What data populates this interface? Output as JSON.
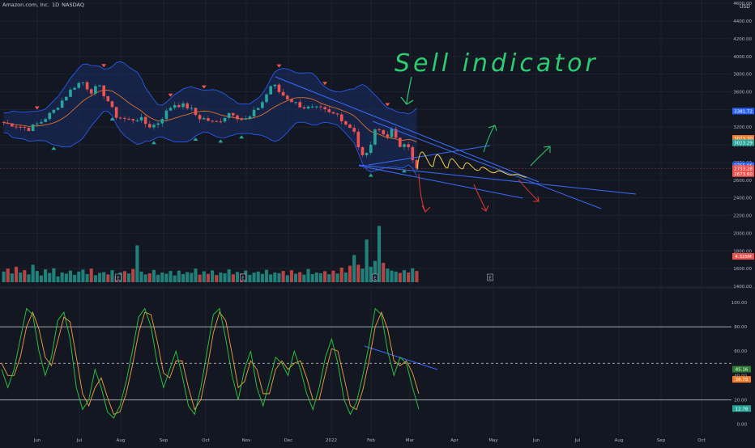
{
  "header": {
    "symbol": "Amazon.com, Inc.",
    "interval": "1D",
    "exchange": "NASDAQ",
    "currency": "USD"
  },
  "colors": {
    "background": "#131722",
    "grid": "#1e2230",
    "up": "#26a69a",
    "down": "#ef5350",
    "band": "#2962ff",
    "band_fill": "#1a2a55",
    "ma": "#f57c2a",
    "stoch_k": "#2ecc40",
    "stoch_d": "#f0a040",
    "drawing_green": "#2ecc71",
    "drawing_red": "#e53935",
    "drawing_yellow": "#f3d24a",
    "trendline": "#3a6cff"
  },
  "annotations": {
    "handwritten": "Sell indicator",
    "event_markers": [
      "E",
      "E",
      "E",
      "E"
    ]
  },
  "chart_data": [
    {
      "type": "candlestick",
      "title": "Amazon.com, Inc., 1D, NASDAQ",
      "x_ticks": [
        "Jun",
        "Jul",
        "Aug",
        "Sep",
        "Oct",
        "Nov",
        "Dec",
        "2022",
        "Feb",
        "Mar",
        "Apr",
        "May",
        "Jun",
        "Jul",
        "Aug",
        "Sep",
        "Oct"
      ],
      "y_ticks": [
        4600,
        4400,
        4200,
        4000,
        3800,
        3600,
        3400,
        3200,
        3000,
        2800,
        2600,
        2400,
        2200,
        2000,
        1800,
        1600,
        1400
      ],
      "ylim": [
        1400,
        4620
      ],
      "price_path": [
        {
          "t": 0,
          "v": 3250
        },
        {
          "t": 0.03,
          "v": 3220
        },
        {
          "t": 0.06,
          "v": 3180
        },
        {
          "t": 0.09,
          "v": 3260
        },
        {
          "t": 0.12,
          "v": 3380
        },
        {
          "t": 0.15,
          "v": 3550
        },
        {
          "t": 0.17,
          "v": 3660
        },
        {
          "t": 0.19,
          "v": 3720
        },
        {
          "t": 0.21,
          "v": 3600
        },
        {
          "t": 0.23,
          "v": 3660
        },
        {
          "t": 0.25,
          "v": 3520
        },
        {
          "t": 0.27,
          "v": 3330
        },
        {
          "t": 0.3,
          "v": 3280
        },
        {
          "t": 0.33,
          "v": 3300
        },
        {
          "t": 0.35,
          "v": 3210
        },
        {
          "t": 0.37,
          "v": 3230
        },
        {
          "t": 0.39,
          "v": 3350
        },
        {
          "t": 0.41,
          "v": 3460
        },
        {
          "t": 0.43,
          "v": 3450
        },
        {
          "t": 0.45,
          "v": 3420
        },
        {
          "t": 0.47,
          "v": 3310
        },
        {
          "t": 0.49,
          "v": 3290
        },
        {
          "t": 0.51,
          "v": 3240
        },
        {
          "t": 0.53,
          "v": 3300
        },
        {
          "t": 0.55,
          "v": 3380
        },
        {
          "t": 0.57,
          "v": 3300
        },
        {
          "t": 0.59,
          "v": 3280
        },
        {
          "t": 0.61,
          "v": 3390
        },
        {
          "t": 0.63,
          "v": 3510
        },
        {
          "t": 0.65,
          "v": 3700
        },
        {
          "t": 0.67,
          "v": 3580
        },
        {
          "t": 0.69,
          "v": 3520
        },
        {
          "t": 0.71,
          "v": 3460
        },
        {
          "t": 0.73,
          "v": 3420
        },
        {
          "t": 0.75,
          "v": 3410
        },
        {
          "t": 0.77,
          "v": 3400
        },
        {
          "t": 0.79,
          "v": 3350
        },
        {
          "t": 0.81,
          "v": 3340
        },
        {
          "t": 0.83,
          "v": 3230
        },
        {
          "t": 0.85,
          "v": 3160
        },
        {
          "t": 0.86,
          "v": 2950
        },
        {
          "t": 0.87,
          "v": 2860
        },
        {
          "t": 0.88,
          "v": 2900
        },
        {
          "t": 0.89,
          "v": 3030
        },
        {
          "t": 0.9,
          "v": 3160
        },
        {
          "t": 0.91,
          "v": 3200
        },
        {
          "t": 0.92,
          "v": 3120
        },
        {
          "t": 0.93,
          "v": 3080
        },
        {
          "t": 0.94,
          "v": 3190
        },
        {
          "t": 0.95,
          "v": 3100
        },
        {
          "t": 0.96,
          "v": 2940
        },
        {
          "t": 0.97,
          "v": 3010
        },
        {
          "t": 0.98,
          "v": 2950
        },
        {
          "t": 0.99,
          "v": 2820
        },
        {
          "t": 1.0,
          "v": 2740
        }
      ],
      "price_labels": [
        "3381.72",
        "3073.30",
        "3023.29",
        "2765.96",
        "2733.28",
        "2673.60"
      ],
      "volume_label": "4.325M",
      "volume_heights": [
        0.55,
        0.7,
        0.45,
        0.8,
        0.5,
        0.62,
        0.4,
        0.9,
        0.58,
        0.35,
        0.66,
        0.48,
        0.72,
        0.3,
        0.5,
        0.44,
        0.6,
        0.38,
        0.55,
        0.65,
        0.42,
        0.7,
        0.36,
        0.48,
        0.52,
        0.4,
        0.62,
        0.33,
        0.5,
        0.57,
        0.45,
        0.68,
        1.9,
        0.55,
        0.4,
        0.46,
        0.63,
        0.38,
        0.5,
        0.44,
        0.58,
        0.35,
        0.6,
        0.42,
        0.52,
        0.48,
        0.7,
        0.39,
        0.56,
        0.43,
        0.61,
        0.37,
        0.5,
        0.46,
        0.66,
        0.41,
        0.53,
        0.45,
        0.6,
        0.38,
        0.49,
        0.55,
        0.43,
        0.64,
        0.4,
        0.5,
        0.47,
        0.58,
        0.36,
        0.62,
        0.44,
        0.52,
        0.39,
        0.68,
        0.42,
        0.5,
        0.46,
        0.57,
        0.41,
        0.6,
        0.45,
        0.75,
        0.5,
        0.85,
        1.4,
        0.9,
        0.7,
        2.2,
        0.8,
        1.1,
        2.9,
        1.0,
        0.7,
        0.6,
        0.55,
        0.48,
        0.62,
        0.5,
        0.72,
        0.58
      ]
    },
    {
      "type": "line",
      "title": "Stochastic RSI",
      "y_ticks": [
        100,
        80,
        60,
        40,
        20,
        0
      ],
      "ylim": [
        -5,
        108
      ],
      "levels": [
        80,
        50,
        20
      ],
      "current_values": [
        "45.16",
        "36.79",
        "12.78"
      ],
      "series": [
        {
          "key": "k",
          "values": [
            45,
            30,
            45,
            70,
            95,
            90,
            60,
            40,
            55,
            85,
            92,
            70,
            30,
            12,
            20,
            45,
            30,
            10,
            5,
            15,
            35,
            60,
            88,
            95,
            80,
            50,
            30,
            45,
            60,
            40,
            15,
            8,
            30,
            60,
            90,
            95,
            70,
            40,
            20,
            45,
            60,
            30,
            15,
            35,
            55,
            50,
            40,
            60,
            45,
            25,
            12,
            30,
            55,
            70,
            50,
            20,
            8,
            18,
            40,
            65,
            95,
            90,
            60,
            40,
            55,
            50,
            30,
            12
          ]
        },
        {
          "key": "d",
          "values": [
            50,
            40,
            40,
            55,
            80,
            92,
            78,
            55,
            48,
            68,
            88,
            84,
            55,
            25,
            15,
            30,
            38,
            22,
            8,
            10,
            25,
            48,
            75,
            92,
            90,
            68,
            42,
            38,
            52,
            52,
            30,
            12,
            20,
            45,
            75,
            92,
            85,
            58,
            30,
            35,
            52,
            45,
            25,
            25,
            45,
            52,
            45,
            50,
            52,
            38,
            20,
            20,
            42,
            62,
            60,
            38,
            15,
            12,
            28,
            52,
            80,
            92,
            78,
            52,
            48,
            52,
            42,
            25
          ]
        }
      ]
    }
  ]
}
